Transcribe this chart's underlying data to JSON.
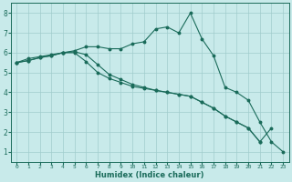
{
  "title": "",
  "xlabel": "Humidex (Indice chaleur)",
  "bg_color": "#c8eaea",
  "grid_color": "#a0cccc",
  "line_color": "#1a6b5a",
  "xmin": -0.5,
  "xmax": 23.5,
  "ymin": 0.5,
  "ymax": 8.5,
  "yticks": [
    1,
    2,
    3,
    4,
    5,
    6,
    7,
    8
  ],
  "xticks": [
    0,
    1,
    2,
    3,
    4,
    5,
    6,
    7,
    8,
    9,
    10,
    11,
    12,
    13,
    14,
    15,
    16,
    17,
    18,
    19,
    20,
    21,
    22,
    23
  ],
  "line1_x": [
    0,
    1,
    2,
    3,
    4,
    5,
    6,
    7,
    8,
    9,
    10,
    11,
    12,
    13,
    14,
    15,
    16,
    17,
    18,
    19,
    20,
    21,
    22,
    23
  ],
  "line1_y": [
    5.5,
    5.7,
    5.8,
    5.9,
    6.0,
    6.1,
    6.3,
    6.3,
    6.2,
    6.2,
    6.45,
    6.55,
    7.2,
    7.3,
    7.0,
    8.0,
    6.7,
    5.85,
    4.25,
    4.0,
    3.6,
    2.5,
    1.5,
    1.0
  ],
  "line2_x": [
    0,
    1,
    2,
    3,
    4,
    5,
    6,
    7,
    8,
    9,
    10,
    11,
    12,
    13,
    14,
    15,
    16,
    17,
    18,
    19,
    20,
    21,
    22
  ],
  "line2_y": [
    5.5,
    5.6,
    5.75,
    5.85,
    6.0,
    6.0,
    5.55,
    5.0,
    4.7,
    4.5,
    4.3,
    4.2,
    4.1,
    4.0,
    3.9,
    3.8,
    3.5,
    3.2,
    2.8,
    2.5,
    2.2,
    1.5,
    2.2
  ],
  "line3_x": [
    0,
    1,
    2,
    3,
    4,
    5,
    6,
    7,
    8,
    9,
    10,
    11,
    12,
    13,
    14,
    15,
    16,
    17,
    18,
    19,
    20,
    21
  ],
  "line3_y": [
    5.5,
    5.6,
    5.75,
    5.85,
    6.0,
    6.05,
    5.9,
    5.4,
    4.9,
    4.65,
    4.4,
    4.25,
    4.1,
    4.0,
    3.9,
    3.8,
    3.5,
    3.2,
    2.8,
    2.5,
    2.2,
    1.5
  ]
}
